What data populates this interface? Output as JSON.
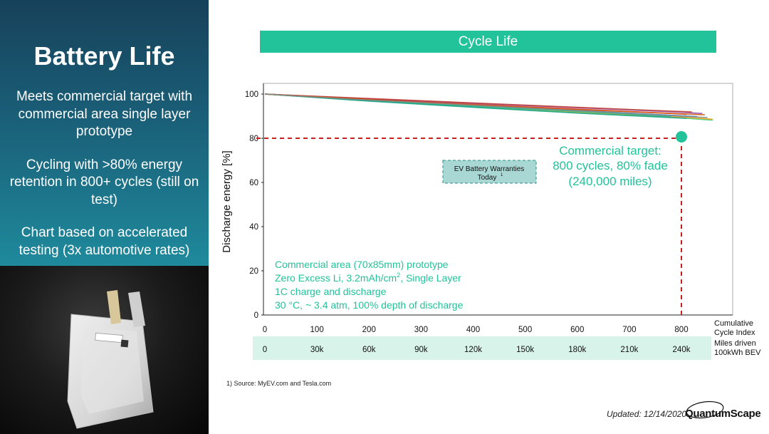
{
  "left_panel": {
    "title": "Battery Life",
    "bullets": [
      "Meets commercial target with commercial area single layer prototype",
      "Cycling with >80% energy retention in 800+ cycles (still on test)",
      "Chart based on accelerated testing (3x automotive rates)"
    ]
  },
  "banner": {
    "title": "Cycle Life"
  },
  "chart_data": {
    "type": "line",
    "title": "Cycle Life",
    "ylabel": "Discharge energy [%]",
    "xlabel": "Cumulative Cycle Index",
    "secondary_xlabel": "Miles driven 100kWh BEV",
    "xlim": [
      0,
      880
    ],
    "ylim": [
      0,
      100
    ],
    "x_ticks": [
      0,
      100,
      200,
      300,
      400,
      500,
      600,
      700,
      800
    ],
    "y_ticks": [
      0,
      20,
      40,
      60,
      80,
      100
    ],
    "miles_ticks": [
      "0",
      "30k",
      "60k",
      "90k",
      "120k",
      "150k",
      "180k",
      "210k",
      "240k"
    ],
    "grid": false,
    "series": [
      {
        "color": "#e0413a",
        "x": [
          0,
          200,
          400,
          600,
          800,
          810
        ],
        "y": [
          100,
          97.6,
          95.4,
          93.2,
          91.0,
          90.8
        ]
      },
      {
        "color": "#3a7bd5",
        "x": [
          0,
          200,
          400,
          600,
          800,
          830
        ],
        "y": [
          100,
          97.2,
          94.8,
          92.6,
          90.2,
          89.8
        ]
      },
      {
        "color": "#8e44ad",
        "x": [
          0,
          200,
          400,
          600,
          800,
          840
        ],
        "y": [
          100,
          97.8,
          95.8,
          93.8,
          91.8,
          91.2
        ]
      },
      {
        "color": "#2ecc71",
        "x": [
          0,
          200,
          400,
          600,
          800,
          860
        ],
        "y": [
          100,
          97.0,
          94.2,
          91.6,
          89.2,
          88.2
        ]
      },
      {
        "color": "#f39c12",
        "x": [
          0,
          200,
          400,
          600,
          800,
          860
        ],
        "y": [
          100,
          97.4,
          94.6,
          92.0,
          89.6,
          88.6
        ]
      },
      {
        "color": "#1abc9c",
        "x": [
          0,
          200,
          400,
          600,
          780
        ],
        "y": [
          100,
          97.1,
          94.5,
          92.2,
          89.9
        ]
      },
      {
        "color": "#c0392b",
        "x": [
          0,
          200,
          400,
          600,
          820
        ],
        "y": [
          100,
          98.0,
          96.0,
          94.0,
          91.9
        ]
      },
      {
        "color": "#16a085",
        "x": [
          0,
          200,
          400,
          600,
          810
        ],
        "y": [
          100,
          96.8,
          94.0,
          91.4,
          89.0
        ]
      },
      {
        "color": "#d35400",
        "x": [
          0,
          200,
          400,
          600,
          845
        ],
        "y": [
          100,
          97.5,
          95.2,
          93.0,
          90.6
        ]
      },
      {
        "color": "#7f8c8d",
        "x": [
          0,
          200,
          400,
          600,
          850
        ],
        "y": [
          100,
          97.3,
          94.9,
          92.5,
          89.4
        ]
      }
    ],
    "annotations": {
      "warranty_box": [
        "EV Battery Warranties",
        "Today"
      ],
      "warranty_sup": "1",
      "target_lines": [
        "Commercial target:",
        "800 cycles, 80% fade",
        "(240,000 miles)"
      ],
      "target_point": {
        "x": 800,
        "y": 80
      },
      "notes": [
        "Commercial area (70x85mm) prototype",
        "Zero Excess Li, 3.2mAh/cm",
        "1C charge and discharge",
        "30 °C, ~ 3.4 atm, 100% depth of discharge"
      ],
      "note2_sup": "2",
      "note2_suffix": ", Single Layer"
    },
    "axis_side_labels": {
      "cycle": [
        "Cumulative",
        "Cycle Index"
      ],
      "miles": [
        "Miles driven",
        "100kWh BEV"
      ]
    }
  },
  "footnote": "1)    Source: MyEV.com and Tesla.com",
  "updated": "Updated: 12/14/2020",
  "logo": "QuantumScape",
  "colors": {
    "accent": "#22c29a",
    "target_line": "#c8201e",
    "panel_dark": "#17415a"
  }
}
